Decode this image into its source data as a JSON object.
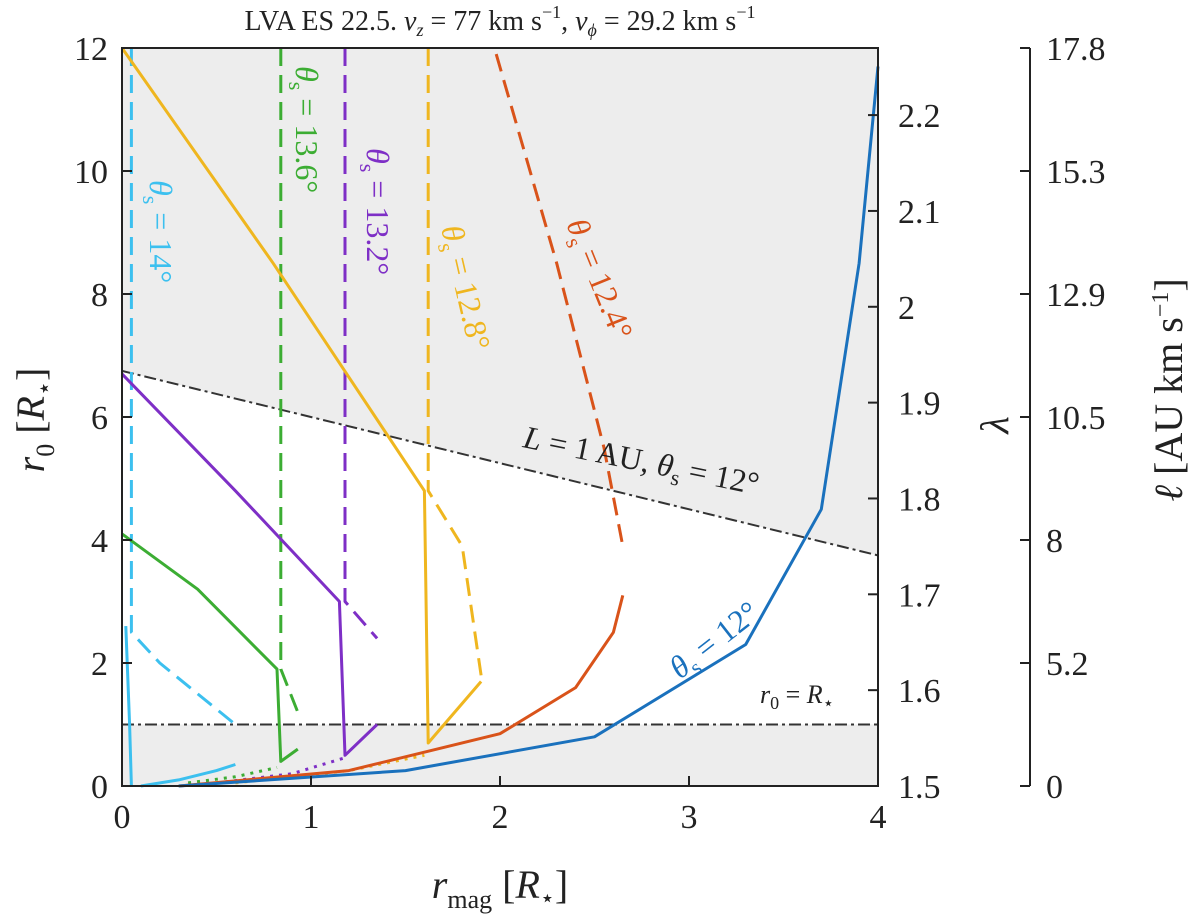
{
  "chart_data": {
    "type": "line",
    "title": "LVA ES 22.5. v_z = 77 km s^-1, v_ϕ = 29.2 km s^-1",
    "xlabel": "r_mag [R⋆]",
    "ylabel": "r0 [R⋆]",
    "ylabel_right_inner": "λ",
    "ylabel_right_outer": "ℓ [AU km s^-1]",
    "xlim": [
      0,
      4
    ],
    "ylim": [
      0,
      12
    ],
    "x_ticks": [
      "0",
      "1",
      "2",
      "3",
      "4"
    ],
    "y_ticks": [
      "0",
      "2",
      "4",
      "6",
      "8",
      "10",
      "12"
    ],
    "lambda_ticks": [
      "1.5",
      "1.6",
      "1.7",
      "1.8",
      "1.9",
      "2",
      "2.1",
      "2.2"
    ],
    "ell_ticks": [
      "0",
      "5.2",
      "8",
      "10.5",
      "12.9",
      "15.3",
      "17.8"
    ],
    "shaded_regions": "r0 < R⋆ and above L = 1 AU line (gray)",
    "reference_lines": [
      {
        "label": "r0 = R⋆",
        "style": "dash-dot",
        "points": [
          [
            0,
            1
          ],
          [
            4,
            1
          ]
        ]
      },
      {
        "label": "L = 1 AU, θs = 12°",
        "style": "dash-dot",
        "points": [
          [
            0,
            6.75
          ],
          [
            4,
            3.75
          ]
        ]
      }
    ],
    "series": [
      {
        "name": "θs = 14°",
        "color": "#3cc0ef",
        "solid": [
          [
            0.02,
            2.6
          ],
          [
            0.04,
            1.0
          ],
          [
            0.05,
            0.0
          ]
        ],
        "dashed": [
          [
            0.05,
            12.0
          ],
          [
            0.05,
            2.5
          ],
          [
            0.2,
            2.0
          ],
          [
            0.4,
            1.5
          ],
          [
            0.6,
            1.0
          ]
        ],
        "solid_low": [
          [
            0.1,
            0.0
          ],
          [
            0.3,
            0.1
          ],
          [
            0.5,
            0.25
          ],
          [
            0.6,
            0.35
          ]
        ],
        "dotted": []
      },
      {
        "name": "θs = 13.6°",
        "color": "#3cad33",
        "solid": [
          [
            0,
            4.1
          ],
          [
            0.4,
            3.2
          ],
          [
            0.82,
            1.9
          ],
          [
            0.84,
            0.4
          ],
          [
            0.93,
            0.6
          ]
        ],
        "dashed": [
          [
            0.84,
            12.0
          ],
          [
            0.84,
            1.9
          ],
          [
            0.93,
            1.2
          ]
        ],
        "dotted": [
          [
            0.35,
            0.05
          ],
          [
            0.6,
            0.15
          ],
          [
            0.82,
            0.3
          ]
        ]
      },
      {
        "name": "θs = 13.2°",
        "color": "#7e2fc6",
        "solid": [
          [
            0,
            6.7
          ],
          [
            0.6,
            4.8
          ],
          [
            1.15,
            3.0
          ],
          [
            1.18,
            0.5
          ],
          [
            1.35,
            1.0
          ]
        ],
        "dashed": [
          [
            1.18,
            12.0
          ],
          [
            1.18,
            3.0
          ],
          [
            1.35,
            2.4
          ]
        ],
        "dotted": [
          [
            0.5,
            0.05
          ],
          [
            0.9,
            0.2
          ],
          [
            1.17,
            0.45
          ]
        ]
      },
      {
        "name": "θs = 12.8°",
        "color": "#efb61f",
        "solid": [
          [
            0,
            12.0
          ],
          [
            0.8,
            8.5
          ],
          [
            1.6,
            4.8
          ],
          [
            1.62,
            0.7
          ],
          [
            1.9,
            1.7
          ]
        ],
        "dashed": [
          [
            1.62,
            12.0
          ],
          [
            1.62,
            4.8
          ],
          [
            1.8,
            3.9
          ],
          [
            1.9,
            1.8
          ]
        ],
        "dotted": [
          [
            0.6,
            0.05
          ],
          [
            1.2,
            0.25
          ],
          [
            1.6,
            0.5
          ]
        ]
      },
      {
        "name": "θs = 12.4°",
        "color": "#d9531a",
        "solid": [
          [
            0.3,
            0.0
          ],
          [
            1.2,
            0.25
          ],
          [
            2.0,
            0.85
          ],
          [
            2.4,
            1.6
          ],
          [
            2.6,
            2.5
          ],
          [
            2.65,
            3.1
          ]
        ],
        "dashed": [
          [
            1.98,
            11.9
          ],
          [
            2.3,
            8.5
          ],
          [
            2.55,
            5.5
          ],
          [
            2.65,
            3.9
          ]
        ],
        "dotted": []
      },
      {
        "name": "θs = 12°",
        "color": "#1a71bd",
        "solid": [
          [
            0.3,
            0.0
          ],
          [
            1.5,
            0.25
          ],
          [
            2.5,
            0.8
          ],
          [
            3.3,
            2.3
          ],
          [
            3.7,
            4.5
          ],
          [
            3.9,
            8.5
          ],
          [
            4.0,
            11.7
          ]
        ],
        "dashed": [],
        "dotted": []
      }
    ],
    "annotations": {
      "r0_eq_rstar": "r0 = R⋆",
      "L_line": "L = 1 AU, θs = 12°",
      "theta_labels": {
        "t14": "θs = 14°",
        "t136": "θs = 13.6°",
        "t132": "θs = 13.2°",
        "t128": "θs = 12.8°",
        "t124": "θs = 12.4°",
        "t12": "θs = 12°"
      }
    }
  }
}
